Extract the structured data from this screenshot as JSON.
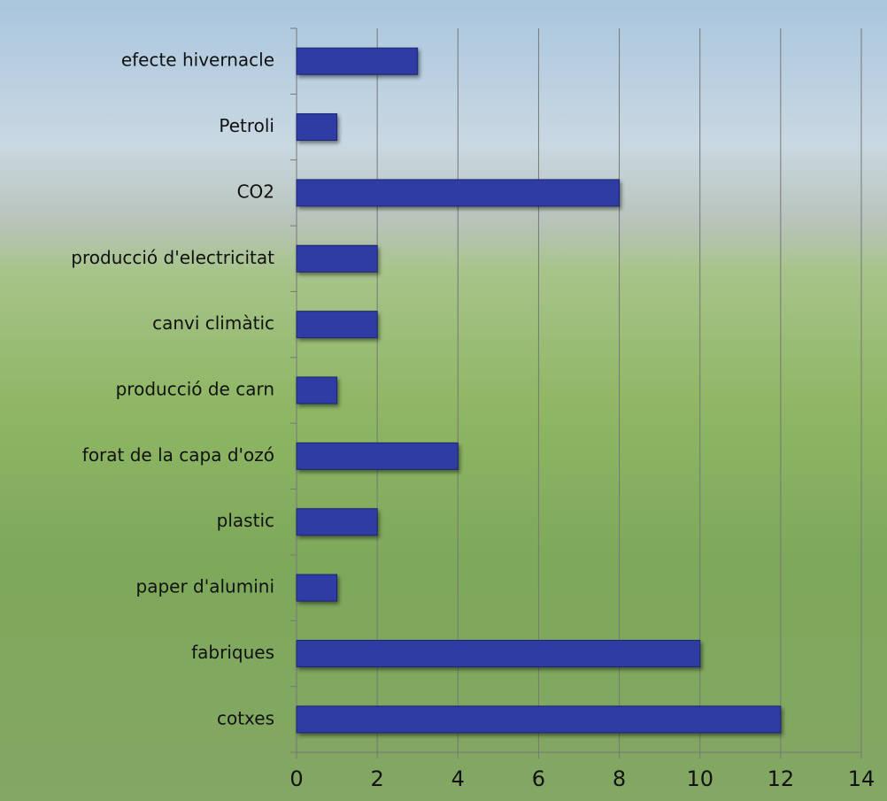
{
  "chart_data": {
    "type": "bar",
    "orientation": "horizontal",
    "categories": [
      "efecte hivernacle",
      "Petroli",
      "CO2",
      "producció d'electricitat",
      "canvi climàtic",
      "producció de carn",
      "forat de la capa d'ozó",
      "plastic",
      "paper d'alumini",
      "fabriques",
      "cotxes"
    ],
    "values": [
      3,
      1,
      8,
      2,
      2,
      1,
      4,
      2,
      1,
      10,
      12
    ],
    "color": "#2e3ca4",
    "xlim": [
      0,
      14
    ],
    "xticks": [
      0,
      2,
      4,
      6,
      8,
      10,
      12,
      14
    ],
    "grid": true
  }
}
